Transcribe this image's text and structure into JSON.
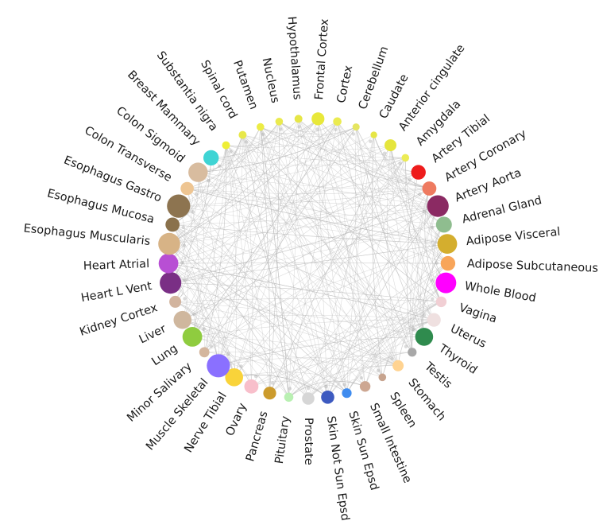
{
  "diagram": {
    "type": "circular-network",
    "nodes": [
      {
        "label": "Frontal Cortex",
        "color": "#e8e83a",
        "weight": 2.2
      },
      {
        "label": "Cortex",
        "color": "#ebeb50",
        "weight": 1.2
      },
      {
        "label": "Cerebellum",
        "color": "#e5e560",
        "weight": 0.9
      },
      {
        "label": "Caudate",
        "color": "#e6e645",
        "weight": 0.8
      },
      {
        "label": "Anterior cingulate",
        "color": "#e5e53c",
        "weight": 2.0
      },
      {
        "label": "Amygdala",
        "color": "#ecec55",
        "weight": 1.0
      },
      {
        "label": "Artery Tibial",
        "color": "#ee1c1c",
        "weight": 2.6
      },
      {
        "label": "Artery Coronary",
        "color": "#ee7a60",
        "weight": 2.5
      },
      {
        "label": "Artery Aorta",
        "color": "#8b2a63",
        "weight": 4.2
      },
      {
        "label": "Adrenal Gland",
        "color": "#8fbd8f",
        "weight": 2.9
      },
      {
        "label": "Adipose Visceral",
        "color": "#d4ae2e",
        "weight": 3.8
      },
      {
        "label": "Adipose Subcutaneous",
        "color": "#f8a55a",
        "weight": 2.6
      },
      {
        "label": "Whole Blood",
        "color": "#ff00ff",
        "weight": 4.0
      },
      {
        "label": "Vagina",
        "color": "#f1cfd4",
        "weight": 1.7
      },
      {
        "label": "Uterus",
        "color": "#efe0e0",
        "weight": 2.4
      },
      {
        "label": "Thyroid",
        "color": "#2f8b4e",
        "weight": 3.4
      },
      {
        "label": "Testis",
        "color": "#a8a8a8",
        "weight": 1.3
      },
      {
        "label": "Stomach",
        "color": "#ffd391",
        "weight": 1.8
      },
      {
        "label": "Spleen",
        "color": "#c7a48f",
        "weight": 1.0
      },
      {
        "label": "Small Intestine",
        "color": "#cda792",
        "weight": 1.7
      },
      {
        "label": "Skin Sun Epsd",
        "color": "#3f8cef",
        "weight": 1.5
      },
      {
        "label": "Skin Not Sun Epsd",
        "color": "#3d5ac0",
        "weight": 2.3
      },
      {
        "label": "Prostate",
        "color": "#d6d6d6",
        "weight": 2.1
      },
      {
        "label": "Pituitary",
        "color": "#b9f0b2",
        "weight": 1.4
      },
      {
        "label": "Pancreas",
        "color": "#cc9b2c",
        "weight": 2.2
      },
      {
        "label": "Ovary",
        "color": "#f8bfcb",
        "weight": 2.5
      },
      {
        "label": "Nerve Tibial",
        "color": "#f9d33a",
        "weight": 3.4
      },
      {
        "label": "Muscle Skeletal",
        "color": "#8a70ff",
        "weight": 4.6
      },
      {
        "label": "Minor Salivary",
        "color": "#d4b69e",
        "weight": 1.6
      },
      {
        "label": "Lung",
        "color": "#8fcc3f",
        "weight": 3.8
      },
      {
        "label": "Liver",
        "color": "#cfb79e",
        "weight": 3.4
      },
      {
        "label": "Kidney Cortex",
        "color": "#d2b49e",
        "weight": 2.0
      },
      {
        "label": "Heart L Vent",
        "color": "#7a2f85",
        "weight": 4.2
      },
      {
        "label": "Heart Atrial",
        "color": "#b84fd4",
        "weight": 3.8
      },
      {
        "label": "Esophagus Muscularis",
        "color": "#d7b386",
        "weight": 4.3
      },
      {
        "label": "Esophagus Mucosa",
        "color": "#8a714c",
        "weight": 2.5
      },
      {
        "label": "Esophagus Gastro",
        "color": "#8d7450",
        "weight": 4.6
      },
      {
        "label": "Colon Transverse",
        "color": "#eec592",
        "weight": 2.3
      },
      {
        "label": "Colon Sigmoid",
        "color": "#d8bc9f",
        "weight": 3.7
      },
      {
        "label": "Breast Mammary",
        "color": "#3fd4d4",
        "weight": 2.8
      },
      {
        "label": "Substantia nigra",
        "color": "#eeee35",
        "weight": 1.1
      },
      {
        "label": "Spinal cord",
        "color": "#e8e84a",
        "weight": 1.1
      },
      {
        "label": "Putamen",
        "color": "#ecec45",
        "weight": 1.0
      },
      {
        "label": "Nucleus",
        "color": "#eaea4f",
        "weight": 1.0
      },
      {
        "label": "Hypothalamus",
        "color": "#e6e647",
        "weight": 1.1
      }
    ]
  }
}
